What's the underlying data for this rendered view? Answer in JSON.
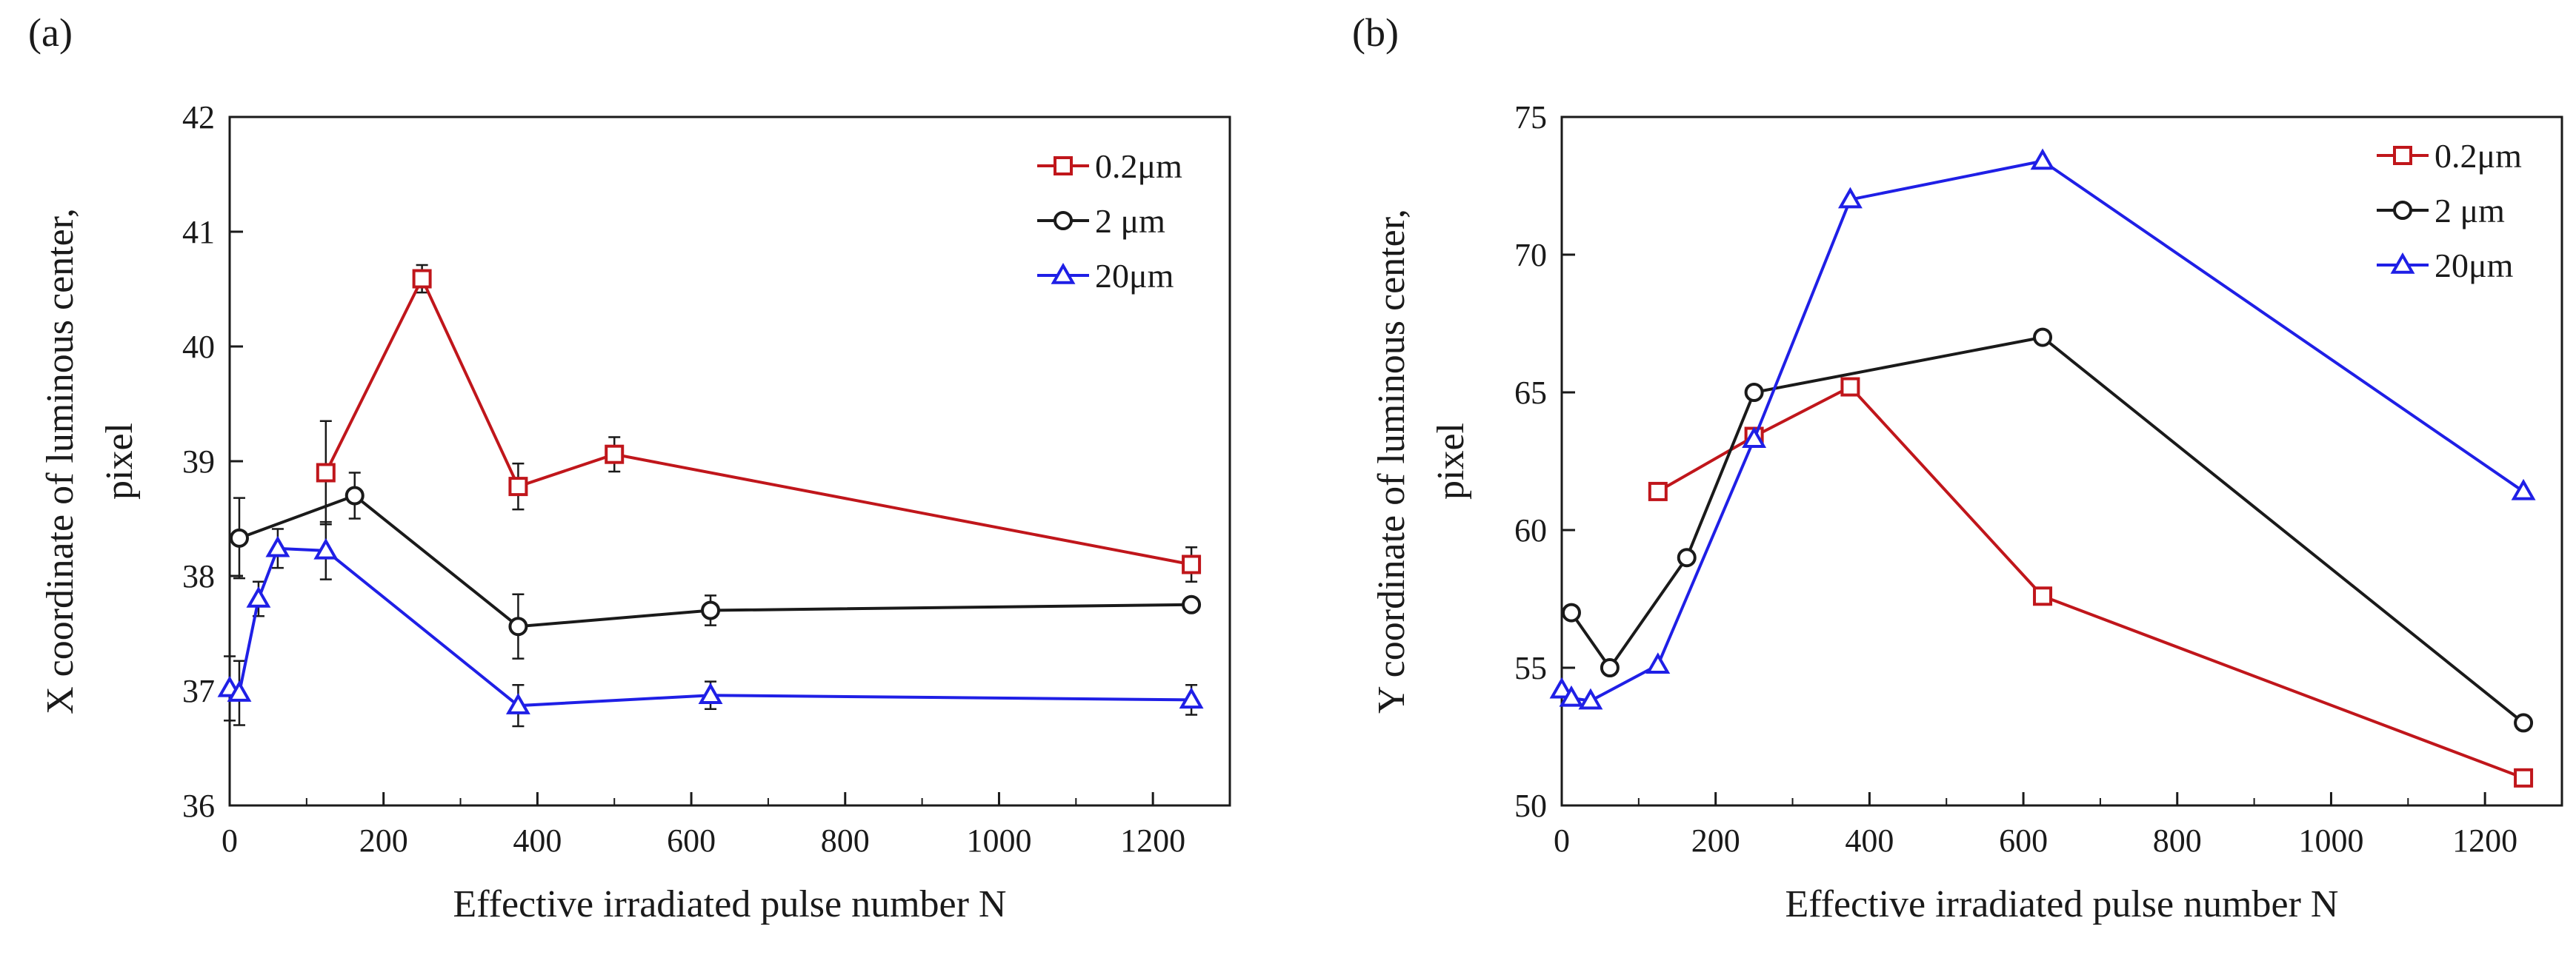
{
  "figure": {
    "panels": [
      "(a)",
      "(b)"
    ]
  },
  "chart_data": [
    {
      "type": "line",
      "panel": "(a)",
      "xlabel": "Effective irradiated pulse number N",
      "ylabel_lines": [
        "X coordinate of luminous center,",
        "pixel"
      ],
      "xlim": [
        0,
        1300
      ],
      "ylim": [
        36,
        42
      ],
      "xticks": [
        0,
        200,
        400,
        600,
        800,
        1000,
        1200
      ],
      "yticks": [
        36,
        37,
        38,
        39,
        40,
        41,
        42
      ],
      "grid": false,
      "legend_position": "top-right",
      "series": [
        {
          "name": "0.2μm",
          "color": "#c0161b",
          "marker": "square",
          "x": [
            125,
            250,
            375,
            500,
            1250
          ],
          "y": [
            38.9,
            40.59,
            38.78,
            39.06,
            38.1
          ],
          "err": [
            0.45,
            0.12,
            0.2,
            0.15,
            0.15
          ]
        },
        {
          "name": "2 μm",
          "color": "#1a1a1a",
          "marker": "circle",
          "x": [
            12.5,
            162.5,
            375,
            625,
            1250
          ],
          "y": [
            38.33,
            38.7,
            37.56,
            37.7,
            37.75
          ],
          "err": [
            0.35,
            0.2,
            0.28,
            0.13,
            0.05
          ]
        },
        {
          "name": "20μm",
          "color": "#1f1fe6",
          "marker": "triangle",
          "x": [
            0,
            12.5,
            37.5,
            62.5,
            125,
            375,
            625,
            1250
          ],
          "y": [
            37.02,
            36.98,
            37.8,
            38.24,
            38.22,
            36.87,
            36.96,
            36.92
          ],
          "err": [
            0.28,
            0.28,
            0.15,
            0.17,
            0.25,
            0.18,
            0.12,
            0.13
          ]
        }
      ]
    },
    {
      "type": "line",
      "panel": "(b)",
      "xlabel": "Effective irradiated pulse number N",
      "ylabel_lines": [
        "Y coordinate of luminous center,",
        "pixel"
      ],
      "xlim": [
        0,
        1300
      ],
      "ylim": [
        50,
        75
      ],
      "xticks": [
        0,
        200,
        400,
        600,
        800,
        1000,
        1200
      ],
      "yticks": [
        50,
        55,
        60,
        65,
        70,
        75
      ],
      "grid": false,
      "legend_position": "top-right",
      "series": [
        {
          "name": "0.2μm",
          "color": "#c0161b",
          "marker": "square",
          "x": [
            125,
            250,
            375,
            625,
            1250
          ],
          "y": [
            61.4,
            63.4,
            65.2,
            57.6,
            51.0
          ]
        },
        {
          "name": "2 μm",
          "color": "#1a1a1a",
          "marker": "circle",
          "x": [
            12.5,
            62.5,
            162.5,
            250,
            625,
            1250
          ],
          "y": [
            57.0,
            55.0,
            59.0,
            65.0,
            67.0,
            53.0
          ]
        },
        {
          "name": "20μm",
          "color": "#1f1fe6",
          "marker": "triangle",
          "x": [
            0,
            12.5,
            37.5,
            125,
            250,
            375,
            625,
            1250
          ],
          "y": [
            54.2,
            53.9,
            53.8,
            55.1,
            63.3,
            72.0,
            73.4,
            61.4
          ]
        }
      ]
    }
  ]
}
